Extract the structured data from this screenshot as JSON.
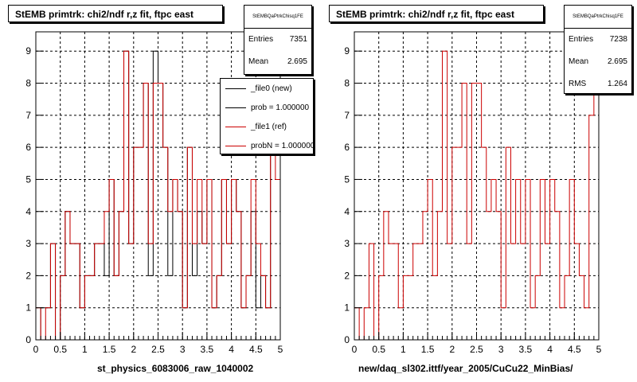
{
  "colors": {
    "new": "#000000",
    "ref": "#cc0000",
    "grid": "#000000"
  },
  "chart_data": [
    {
      "type": "line",
      "title": "StEMB primtrk: chi2/ndf r,z fit, ftpc east",
      "xlabel": "st_physics_6083006_raw_1040002",
      "ylabel": "",
      "xlim": [
        0,
        5
      ],
      "ylim": [
        0,
        9.6
      ],
      "grid": true,
      "xticks": [
        "0",
        "0.5",
        "1",
        "1.5",
        "2",
        "2.5",
        "3",
        "3.5",
        "4",
        "4.5",
        "5"
      ],
      "yticks": [
        "0",
        "1",
        "2",
        "3",
        "4",
        "5",
        "6",
        "7",
        "8",
        "9"
      ],
      "bin_width": 0.1,
      "stats": {
        "name": "StEMBQaPtrkChisq1FE",
        "entries_label": "Entries",
        "entries": "7351",
        "mean_label": "Mean",
        "mean": "2.695"
      },
      "legend": [
        {
          "label": "_file0 (new)",
          "color": "#000000"
        },
        {
          "label": "prob = 1.000000",
          "color": "#000000"
        },
        {
          "label": "_file1 (ref)",
          "color": "#cc0000"
        },
        {
          "label": "probN = 1.000000",
          "color": "#cc0000"
        }
      ],
      "series": [
        {
          "name": "_file0 (new)",
          "color": "#000000",
          "values": [
            0,
            1,
            1,
            3,
            0,
            2,
            4,
            3,
            3,
            1,
            2,
            2,
            3,
            3,
            2,
            5,
            2,
            4,
            9,
            3,
            6,
            6,
            8,
            2,
            9,
            8,
            6,
            2,
            5,
            4,
            1,
            6,
            2,
            4,
            3,
            5,
            1,
            2,
            5,
            3,
            5,
            4,
            1,
            2,
            4,
            1,
            2,
            1,
            8,
            6
          ]
        },
        {
          "name": "_file1 (ref)",
          "color": "#cc0000",
          "values": [
            1,
            0,
            1,
            3,
            0,
            2,
            4,
            3,
            3,
            1,
            2,
            2,
            3,
            3,
            4,
            5,
            2,
            4,
            9,
            3,
            6,
            6,
            8,
            3,
            8,
            8,
            6,
            4,
            5,
            4,
            1,
            6,
            3,
            5,
            3,
            5,
            1,
            2,
            5,
            3,
            5,
            4,
            1,
            2,
            5,
            3,
            2,
            1,
            7,
            5
          ]
        }
      ]
    },
    {
      "type": "line",
      "title": "StEMB primtrk: chi2/ndf r,z fit, ftpc east",
      "xlabel": "new/daq_sl302.ittf/year_2005/CuCu22_MinBias/",
      "ylabel": "",
      "xlim": [
        0,
        5
      ],
      "ylim": [
        0,
        9.6
      ],
      "grid": true,
      "xticks": [
        "0",
        "0.5",
        "1",
        "1.5",
        "2",
        "2.5",
        "3",
        "3.5",
        "4",
        "4.5",
        "5"
      ],
      "yticks": [
        "0",
        "1",
        "2",
        "3",
        "4",
        "5",
        "6",
        "7",
        "8",
        "9"
      ],
      "bin_width": 0.1,
      "stats": {
        "name": "StEMBQaPtrkChisq1FE",
        "entries_label": "Entries",
        "entries": "7238",
        "mean_label": "Mean",
        "mean": "2.695",
        "rms_label": "RMS",
        "rms": "1.264"
      },
      "series": [
        {
          "name": "_file1 (ref)",
          "color": "#cc0000",
          "values": [
            1,
            0,
            1,
            3,
            0,
            2,
            4,
            3,
            3,
            1,
            2,
            2,
            3,
            3,
            4,
            5,
            2,
            4,
            9,
            3,
            6,
            6,
            8,
            3,
            8,
            8,
            6,
            4,
            5,
            4,
            1,
            6,
            3,
            5,
            3,
            5,
            1,
            2,
            5,
            3,
            5,
            4,
            1,
            2,
            5,
            3,
            2,
            1,
            7,
            9
          ]
        }
      ]
    }
  ]
}
